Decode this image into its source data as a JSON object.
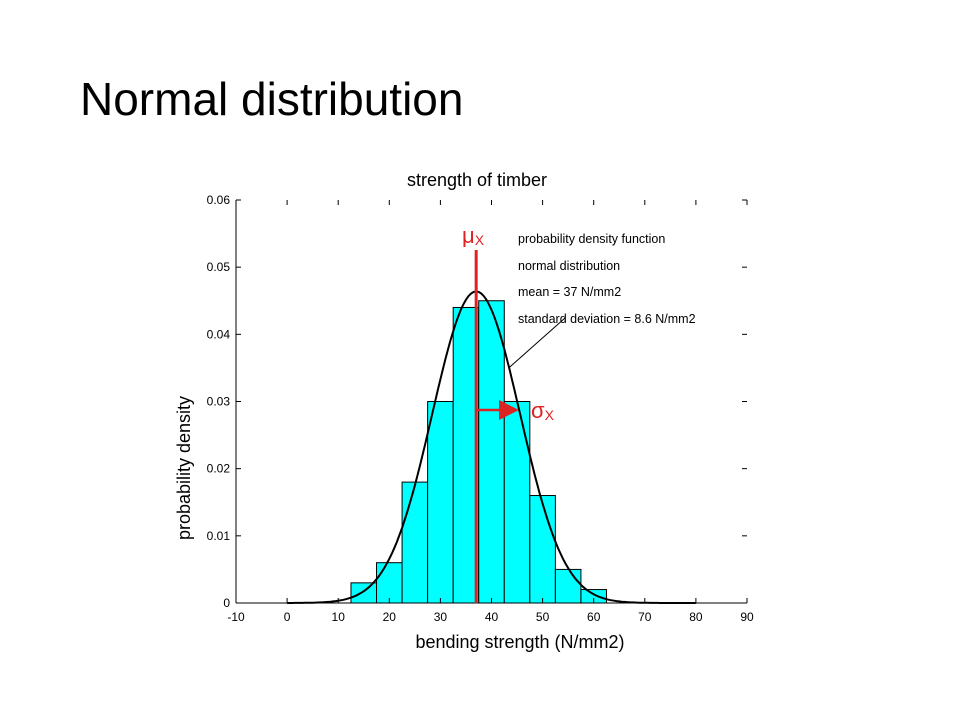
{
  "slide": {
    "title": "Normal distribution"
  },
  "chart_data": {
    "type": "bar",
    "title": "strength of timber",
    "xlabel": "bending strength (N/mm2)",
    "ylabel": "probability density",
    "xlim": [
      -10,
      90
    ],
    "ylim": [
      0,
      0.06
    ],
    "xticks": [
      "-10",
      "0",
      "10",
      "20",
      "30",
      "40",
      "50",
      "60",
      "70",
      "80",
      "90"
    ],
    "yticks": [
      "0",
      "0.01",
      "0.02",
      "0.03",
      "0.04",
      "0.05",
      "0.06"
    ],
    "bar_width": 5,
    "bar_color": "#00FFFF",
    "bars": [
      {
        "x": 15,
        "value": 0.003
      },
      {
        "x": 20,
        "value": 0.006
      },
      {
        "x": 25,
        "value": 0.018
      },
      {
        "x": 30,
        "value": 0.03
      },
      {
        "x": 35,
        "value": 0.044
      },
      {
        "x": 40,
        "value": 0.045
      },
      {
        "x": 45,
        "value": 0.03
      },
      {
        "x": 50,
        "value": 0.016
      },
      {
        "x": 55,
        "value": 0.005
      },
      {
        "x": 60,
        "value": 0.002
      }
    ],
    "curve": {
      "distribution": "normal",
      "mean": 37,
      "std": 8.6,
      "color": "#000000"
    },
    "mean_marker": {
      "x": 37,
      "label_main": "μ",
      "label_sub": "X",
      "color": "#DD2222"
    },
    "std_marker": {
      "label_main": "σ",
      "label_sub": "X",
      "color": "#DD2222"
    },
    "annotation": {
      "lines": [
        "probability density function",
        "normal distribution",
        "mean = 37 N/mm2",
        "standard deviation = 8.6 N/mm2"
      ],
      "arrow_target": {
        "x": 43,
        "y": 0.035
      }
    }
  }
}
